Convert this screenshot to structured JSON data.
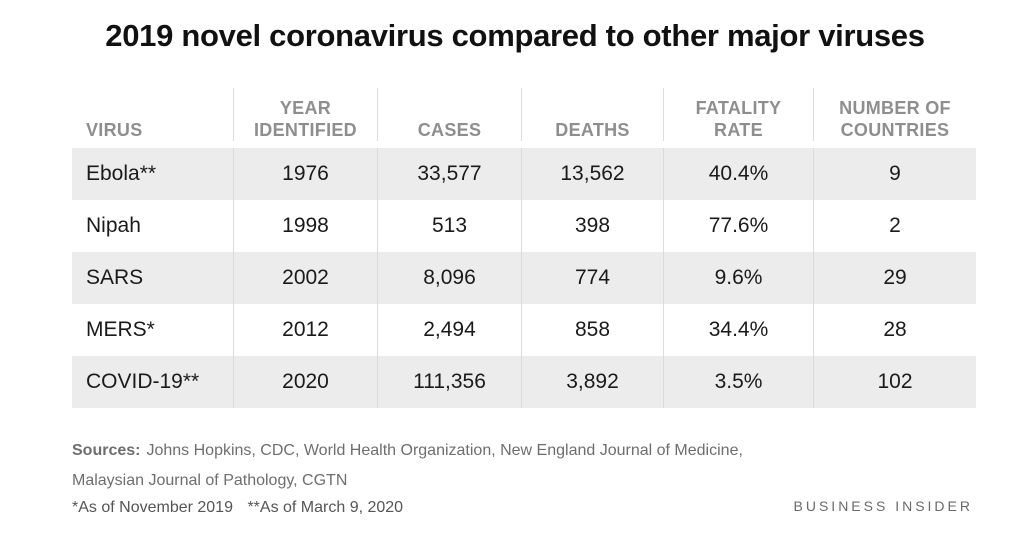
{
  "title": "2019 novel coronavirus compared to other major viruses",
  "chart_data": {
    "type": "table",
    "columns": [
      "VIRUS",
      "YEAR IDENTIFIED",
      "CASES",
      "DEATHS",
      "FATALITY RATE",
      "NUMBER OF COUNTRIES"
    ],
    "column_lines": [
      [
        "VIRUS"
      ],
      [
        "YEAR",
        "IDENTIFIED"
      ],
      [
        "CASES"
      ],
      [
        "DEATHS"
      ],
      [
        "FATALITY",
        "RATE"
      ],
      [
        "NUMBER OF",
        "COUNTRIES"
      ]
    ],
    "rows": [
      [
        "Ebola**",
        "1976",
        "33,577",
        "13,562",
        "40.4%",
        "9"
      ],
      [
        "Nipah",
        "1998",
        "513",
        "398",
        "77.6%",
        "2"
      ],
      [
        "SARS",
        "2002",
        "8,096",
        "774",
        "9.6%",
        "29"
      ],
      [
        "MERS*",
        "2012",
        "2,494",
        "858",
        "34.4%",
        "28"
      ],
      [
        "COVID-19**",
        "2020",
        "111,356",
        "3,892",
        "3.5%",
        "102"
      ]
    ]
  },
  "sources": {
    "label": "Sources:",
    "line1": "Johns Hopkins, CDC, World Health Organization, New England Journal of Medicine,",
    "line2": "Malaysian Journal of Pathology, CGTN"
  },
  "footnotes": {
    "single": "*As of November 2019",
    "double": "**As of March 9, 2020"
  },
  "brand": "BUSINESS INSIDER",
  "colors": {
    "shaded_row": "#ececec",
    "header_text": "#8e8e8e",
    "body_text": "#1a1a1a"
  }
}
